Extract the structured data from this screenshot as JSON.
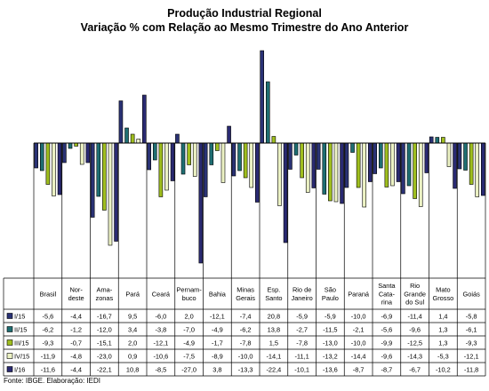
{
  "chart_data": {
    "type": "bar",
    "title": "Produção Industrial Regional",
    "subtitle": "Variação % com Relação ao Mesmo Trimestre do Ano Anterior",
    "categories": [
      [
        "Brasil"
      ],
      [
        "Nor-",
        "deste"
      ],
      [
        "Ama-",
        "zonas"
      ],
      [
        "Pará"
      ],
      [
        "Ceará"
      ],
      [
        "Pernam-",
        "buco"
      ],
      [
        "Bahia"
      ],
      [
        "Minas",
        "Gerais"
      ],
      [
        "Esp.",
        "Santo"
      ],
      [
        "Rio de",
        "Janeiro"
      ],
      [
        "São",
        "Paulo"
      ],
      [
        "Paraná"
      ],
      [
        "Santa",
        "Cata-",
        "rina"
      ],
      [
        "Rio",
        "Grande",
        "do Sul"
      ],
      [
        "Mato",
        "Grosso"
      ],
      [
        "Goiás"
      ]
    ],
    "series": [
      {
        "name": "I/15",
        "color": "#2a3275",
        "values": [
          -5.6,
          -4.4,
          -16.7,
          9.5,
          -6.0,
          2.0,
          -12.1,
          -7.4,
          20.8,
          -5.9,
          -5.9,
          -10.0,
          -6.9,
          -11.4,
          1.4,
          -5.8
        ]
      },
      {
        "name": "II/15",
        "color": "#1f6e72",
        "values": [
          -6.2,
          -1.2,
          -12.0,
          3.4,
          -3.8,
          -7.0,
          -4.9,
          -6.2,
          13.8,
          -2.7,
          -11.5,
          -2.1,
          -5.6,
          -9.6,
          1.3,
          -6.1
        ]
      },
      {
        "name": "III/15",
        "color": "#9fbe1e",
        "values": [
          -9.3,
          -0.7,
          -15.1,
          2.0,
          -12.1,
          -4.9,
          -1.7,
          -7.8,
          1.5,
          -7.8,
          -13.0,
          -10.0,
          -9.9,
          -12.5,
          1.3,
          -9.3
        ]
      },
      {
        "name": "IV/15",
        "color": "#ecf2c4",
        "values": [
          -11.9,
          -4.8,
          -23.0,
          0.9,
          -10.6,
          -7.5,
          -8.9,
          -10.0,
          -14.1,
          -11.1,
          -13.2,
          -14.4,
          -9.6,
          -14.3,
          -5.3,
          -12.1
        ]
      },
      {
        "name": "I/16",
        "color": "#2a2a72",
        "values": [
          -11.6,
          -4.4,
          -22.1,
          10.8,
          -8.5,
          -27.0,
          3.8,
          -13.3,
          -22.4,
          -10.1,
          -13.6,
          -8.7,
          -8.7,
          -6.7,
          -10.2,
          -11.8
        ]
      }
    ],
    "value_labels": [
      [
        "-5,6",
        "-4,4",
        "-16,7",
        "9,5",
        "-6,0",
        "2,0",
        "-12,1",
        "-7,4",
        "20,8",
        "-5,9",
        "-5,9",
        "-10,0",
        "-6,9",
        "-11,4",
        "1,4",
        "-5,8"
      ],
      [
        "-6,2",
        "-1,2",
        "-12,0",
        "3,4",
        "-3,8",
        "-7,0",
        "-4,9",
        "-6,2",
        "13,8",
        "-2,7",
        "-11,5",
        "-2,1",
        "-5,6",
        "-9,6",
        "1,3",
        "-6,1"
      ],
      [
        "-9,3",
        "-0,7",
        "-15,1",
        "2,0",
        "-12,1",
        "-4,9",
        "-1,7",
        "-7,8",
        "1,5",
        "-7,8",
        "-13,0",
        "-10,0",
        "-9,9",
        "-12,5",
        "1,3",
        "-9,3"
      ],
      [
        "-11,9",
        "-4,8",
        "-23,0",
        "0,9",
        "-10,6",
        "-7,5",
        "-8,9",
        "-10,0",
        "-14,1",
        "-11,1",
        "-13,2",
        "-14,4",
        "-9,6",
        "-14,3",
        "-5,3",
        "-12,1"
      ],
      [
        "-11,6",
        "-4,4",
        "-22,1",
        "10,8",
        "-8,5",
        "-27,0",
        "3,8",
        "-13,3",
        "-22,4",
        "-10,1",
        "-13,6",
        "-8,7",
        "-8,7",
        "-6,7",
        "-10,2",
        "-11,8"
      ]
    ],
    "ylim": [
      -29,
      20.8
    ],
    "grid": false,
    "legend": "table-left",
    "xlabel": "",
    "ylabel": ""
  },
  "source": "Fonte: IBGE. Elaboração: IEDI"
}
